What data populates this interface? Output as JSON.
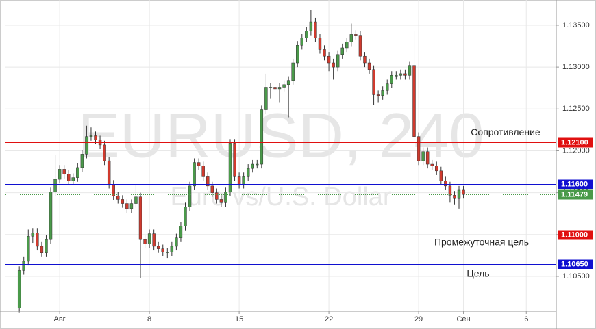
{
  "chart_data": {
    "type": "candlestick",
    "watermark": {
      "symbol": "EURUSD, 240",
      "description": "Euro vs/U.S. Dollar"
    },
    "up_color": "#4a9a4a",
    "down_color": "#d03a2e",
    "wick_color": "#333333",
    "xlim": [
      -3.02,
      27.67
    ],
    "xticks": [
      {
        "value": 0,
        "label": "Авг"
      },
      {
        "value": 5,
        "label": "8"
      },
      {
        "value": 10,
        "label": "15"
      },
      {
        "value": 15,
        "label": "22"
      },
      {
        "value": 20,
        "label": "29"
      },
      {
        "value": 22.5,
        "label": "Сен"
      },
      {
        "value": 26,
        "label": "6"
      }
    ],
    "ylim": [
      1.10083,
      1.13802
    ],
    "yticks": [
      {
        "value": 1.105,
        "label": "1.10500"
      },
      {
        "value": 1.11,
        "label": "1.11000"
      },
      {
        "value": 1.115,
        "label": "1.11500"
      },
      {
        "value": 1.12,
        "label": "1.12000"
      },
      {
        "value": 1.125,
        "label": "1.12500"
      },
      {
        "value": 1.13,
        "label": "1.13000"
      },
      {
        "value": 1.135,
        "label": "1.13500"
      }
    ],
    "grid": true,
    "levels": [
      {
        "value": 1.121,
        "label": "1.12100",
        "color": "#e01010",
        "style": "solid"
      },
      {
        "value": 1.116,
        "label": "1.11600",
        "color": "#1010d0",
        "style": "solid"
      },
      {
        "value": 1.11479,
        "label": "1.11479",
        "color": "#4a9a4a",
        "style": "dotted"
      },
      {
        "value": 1.11,
        "label": "1.11000",
        "color": "#e01010",
        "style": "solid"
      },
      {
        "value": 1.1065,
        "label": "1.10650",
        "color": "#1010d0",
        "style": "solid"
      }
    ],
    "annotations": [
      "Сопротивление",
      "Промежуточная цель",
      "Цель"
    ],
    "x": [
      -2.25,
      -2,
      -1.75,
      -1.5,
      -1.25,
      -1,
      -0.75,
      -0.5,
      -0.25,
      0,
      0.25,
      0.5,
      0.75,
      1,
      1.25,
      1.5,
      1.75,
      2,
      2.25,
      2.5,
      2.75,
      3,
      3.25,
      3.5,
      3.75,
      4,
      4.25,
      4.5,
      4.75,
      5,
      5.25,
      5.5,
      5.75,
      6,
      6.25,
      6.5,
      6.75,
      7,
      7.25,
      7.5,
      7.75,
      8,
      8.25,
      8.5,
      8.75,
      9,
      9.25,
      9.5,
      9.75,
      10,
      10.25,
      10.5,
      10.75,
      11,
      11.25,
      11.5,
      11.75,
      12,
      12.25,
      12.5,
      12.75,
      13,
      13.25,
      13.5,
      13.75,
      14,
      14.25,
      14.5,
      14.75,
      15,
      15.25,
      15.5,
      15.75,
      16,
      16.25,
      16.5,
      16.75,
      17,
      17.25,
      17.5,
      17.75,
      18,
      18.25,
      18.5,
      18.75,
      19,
      19.25,
      19.5,
      19.75,
      20,
      20.25,
      20.5,
      20.75,
      21,
      21.25,
      21.5,
      21.75,
      22,
      22.25,
      22.5
    ],
    "open": [
      1.1012,
      1.1057,
      1.1068,
      1.1098,
      1.1102,
      1.1086,
      1.1078,
      1.1094,
      1.1151,
      1.1166,
      1.1178,
      1.1172,
      1.1164,
      1.1168,
      1.118,
      1.1196,
      1.1217,
      1.1218,
      1.1213,
      1.1207,
      1.1188,
      1.116,
      1.1146,
      1.1142,
      1.1137,
      1.1131,
      1.1137,
      1.1145,
      1.1094,
      1.1089,
      1.1101,
      1.1086,
      1.1083,
      1.1079,
      1.1079,
      1.1086,
      1.1096,
      1.111,
      1.1133,
      1.1158,
      1.1186,
      1.1182,
      1.1169,
      1.1158,
      1.115,
      1.1142,
      1.1138,
      1.1151,
      1.1209,
      1.1169,
      1.116,
      1.1169,
      1.1179,
      1.1184,
      1.1184,
      1.1249,
      1.1276,
      1.1276,
      1.1274,
      1.1276,
      1.1279,
      1.1284,
      1.1305,
      1.1326,
      1.1335,
      1.1343,
      1.1354,
      1.1335,
      1.1321,
      1.1313,
      1.1305,
      1.13,
      1.1315,
      1.1323,
      1.133,
      1.1339,
      1.1338,
      1.1313,
      1.1305,
      1.1297,
      1.1267,
      1.1266,
      1.1272,
      1.128,
      1.129,
      1.129,
      1.1292,
      1.129,
      1.1302,
      1.1217,
      1.1188,
      1.1199,
      1.1184,
      1.1182,
      1.1176,
      1.1164,
      1.1158,
      1.1147,
      1.1143,
      1.1153
    ],
    "high": [
      1.1062,
      1.1073,
      1.1106,
      1.1107,
      1.1107,
      1.1091,
      1.1099,
      1.1156,
      1.1195,
      1.1183,
      1.1183,
      1.1177,
      1.1173,
      1.1185,
      1.1201,
      1.123,
      1.1228,
      1.1223,
      1.1218,
      1.1212,
      1.1193,
      1.1165,
      1.1151,
      1.1147,
      1.1142,
      1.1142,
      1.116,
      1.115,
      1.1099,
      1.1106,
      1.1106,
      1.1091,
      1.1088,
      1.1084,
      1.1091,
      1.1101,
      1.1115,
      1.1138,
      1.1163,
      1.1191,
      1.1191,
      1.1187,
      1.1174,
      1.1163,
      1.1155,
      1.1147,
      1.1156,
      1.1214,
      1.1214,
      1.1174,
      1.1174,
      1.1184,
      1.1189,
      1.1189,
      1.1254,
      1.1292,
      1.1281,
      1.1281,
      1.1281,
      1.1284,
      1.1289,
      1.131,
      1.1331,
      1.134,
      1.1348,
      1.1368,
      1.1359,
      1.134,
      1.1326,
      1.1318,
      1.131,
      1.132,
      1.1328,
      1.1335,
      1.1352,
      1.1344,
      1.1343,
      1.1318,
      1.131,
      1.1302,
      1.1272,
      1.1277,
      1.1285,
      1.1295,
      1.1295,
      1.1297,
      1.1297,
      1.1307,
      1.1343,
      1.1222,
      1.1204,
      1.1204,
      1.1189,
      1.1187,
      1.1181,
      1.1169,
      1.1163,
      1.1152,
      1.1158,
      1.1158
    ],
    "low": [
      1.1007,
      1.1052,
      1.1063,
      1.109,
      1.1081,
      1.1073,
      1.1073,
      1.1089,
      1.1146,
      1.1161,
      1.1167,
      1.1159,
      1.1159,
      1.1163,
      1.1175,
      1.1191,
      1.1212,
      1.1208,
      1.1202,
      1.1183,
      1.1155,
      1.1141,
      1.1137,
      1.1132,
      1.1126,
      1.1126,
      1.1132,
      1.1048,
      1.1084,
      1.1084,
      1.1081,
      1.1078,
      1.1074,
      1.1072,
      1.1074,
      1.1081,
      1.1091,
      1.1105,
      1.1128,
      1.1153,
      1.1177,
      1.1164,
      1.1153,
      1.1145,
      1.1137,
      1.1133,
      1.1133,
      1.1146,
      1.1164,
      1.1155,
      1.1155,
      1.1164,
      1.1174,
      1.1179,
      1.1179,
      1.1244,
      1.1262,
      1.1262,
      1.1258,
      1.1271,
      1.124,
      1.1279,
      1.13,
      1.1321,
      1.133,
      1.1338,
      1.133,
      1.1316,
      1.1308,
      1.1295,
      1.1285,
      1.1295,
      1.131,
      1.1318,
      1.1325,
      1.1333,
      1.1308,
      1.13,
      1.1292,
      1.1255,
      1.1258,
      1.1261,
      1.1267,
      1.1275,
      1.1285,
      1.1285,
      1.1285,
      1.1285,
      1.1212,
      1.1183,
      1.1183,
      1.1179,
      1.1177,
      1.1171,
      1.1159,
      1.1153,
      1.1138,
      1.1136,
      1.1131,
      1.1143
    ],
    "close": [
      1.1057,
      1.1068,
      1.1098,
      1.1102,
      1.1086,
      1.1078,
      1.1094,
      1.1151,
      1.1166,
      1.1178,
      1.1172,
      1.1164,
      1.1168,
      1.118,
      1.1196,
      1.1217,
      1.1218,
      1.1213,
      1.1207,
      1.1188,
      1.116,
      1.1146,
      1.1142,
      1.1137,
      1.1131,
      1.1137,
      1.1145,
      1.1094,
      1.1089,
      1.1101,
      1.1086,
      1.1083,
      1.1079,
      1.1079,
      1.1086,
      1.1096,
      1.111,
      1.1133,
      1.1158,
      1.1186,
      1.1182,
      1.1169,
      1.1158,
      1.115,
      1.1142,
      1.1138,
      1.1151,
      1.1209,
      1.1169,
      1.116,
      1.1169,
      1.1179,
      1.1184,
      1.1184,
      1.1249,
      1.1276,
      1.1276,
      1.1274,
      1.1276,
      1.1279,
      1.1284,
      1.1305,
      1.1326,
      1.1335,
      1.1343,
      1.1354,
      1.1335,
      1.1321,
      1.1313,
      1.1305,
      1.13,
      1.1315,
      1.1323,
      1.133,
      1.1339,
      1.1338,
      1.1313,
      1.1305,
      1.1297,
      1.1267,
      1.1266,
      1.1272,
      1.128,
      1.129,
      1.129,
      1.1292,
      1.129,
      1.1302,
      1.1217,
      1.1188,
      1.1199,
      1.1184,
      1.1182,
      1.1176,
      1.1164,
      1.1158,
      1.1147,
      1.1143,
      1.1153,
      1.11479
    ]
  }
}
